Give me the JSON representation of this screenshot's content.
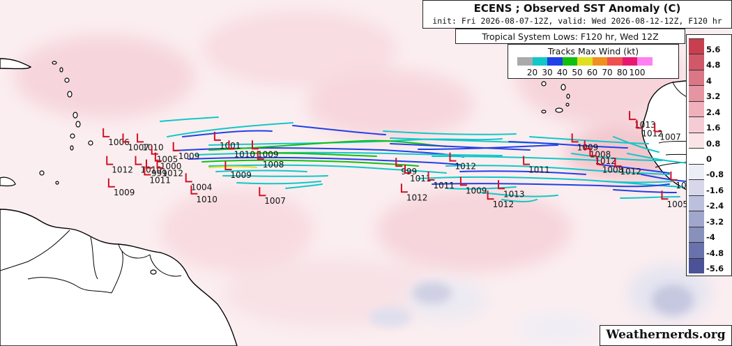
{
  "title": "ECENS ; Observed SST Anomaly (C)",
  "subtitle": "init: Fri 2026-08-07-12Z, valid: Wed 2026-08-12-12Z, F120 hr",
  "tracks_header": "Tropical System Lows: F120 hr, Wed 12Z",
  "wind_legend": {
    "title": "Tracks Max Wind (kt)",
    "colors": [
      "#aaaaaa",
      "#10c8c8",
      "#2040e8",
      "#10c010",
      "#e0e020",
      "#f09020",
      "#f05050",
      "#e81870",
      "#ff80f0"
    ],
    "ticks": [
      "20",
      "30",
      "40",
      "50",
      "60",
      "70",
      "80",
      "100"
    ]
  },
  "colorbar": {
    "labels": [
      "5.6",
      "4.8",
      "4",
      "3.2",
      "2.4",
      "1.6",
      "0.8",
      "0",
      "-0.8",
      "-1.6",
      "-2.4",
      "-3.2",
      "-4",
      "-4.8",
      "-5.6"
    ],
    "colors": [
      "#c84050",
      "#d05868",
      "#da7686",
      "#e694a2",
      "#efb0bc",
      "#f6ccd4",
      "#fbe4e8",
      "#ffffff",
      "#eceef6",
      "#d6d8ea",
      "#bcc0dc",
      "#a0a6cc",
      "#8890bc",
      "#6a72ac",
      "#4c5296"
    ]
  },
  "credit": "Weathernerds.org",
  "chart_data": {
    "type": "map",
    "field": "Observed SST Anomaly (C)",
    "lows": [
      {
        "pressure": "1006",
        "lon": -60.5,
        "lat": 16.2
      },
      {
        "pressure": "1007",
        "lon": -59.4,
        "lat": 15.9
      },
      {
        "pressure": "1010",
        "lon": -58.6,
        "lat": 15.9
      },
      {
        "pressure": "1012",
        "lon": -60.3,
        "lat": 14.6
      },
      {
        "pressure": "1010",
        "lon": -58.7,
        "lat": 14.6
      },
      {
        "pressure": "1005",
        "lon": -57.8,
        "lat": 15.2
      },
      {
        "pressure": "1009",
        "lon": -56.6,
        "lat": 15.4
      },
      {
        "pressure": "1000",
        "lon": -57.6,
        "lat": 14.8
      },
      {
        "pressure": "999",
        "lon": -58.1,
        "lat": 14.4
      },
      {
        "pressure": "1012",
        "lon": -57.5,
        "lat": 14.4
      },
      {
        "pressure": "1011",
        "lon": -58.2,
        "lat": 14.0
      },
      {
        "pressure": "1004",
        "lon": -55.9,
        "lat": 13.6
      },
      {
        "pressure": "1009",
        "lon": -60.2,
        "lat": 13.3
      },
      {
        "pressure": "1010",
        "lon": -55.6,
        "lat": 12.9
      },
      {
        "pressure": "1001",
        "lon": -54.3,
        "lat": 16.0
      },
      {
        "pressure": "1010",
        "lon": -53.5,
        "lat": 15.5
      },
      {
        "pressure": "1009",
        "lon": -52.2,
        "lat": 15.5
      },
      {
        "pressure": "1008",
        "lon": -51.9,
        "lat": 14.9
      },
      {
        "pressure": "1009",
        "lon": -53.7,
        "lat": 14.3
      },
      {
        "pressure": "1007",
        "lon": -51.8,
        "lat": 12.8
      },
      {
        "pressure": "999",
        "lon": -44.2,
        "lat": 14.5
      },
      {
        "pressure": "1011",
        "lon": -43.7,
        "lat": 14.1
      },
      {
        "pressure": "1012",
        "lon": -43.9,
        "lat": 13.0
      },
      {
        "pressure": "1011",
        "lon": -42.4,
        "lat": 13.7
      },
      {
        "pressure": "1012",
        "lon": -41.2,
        "lat": 14.8
      },
      {
        "pressure": "1009",
        "lon": -40.6,
        "lat": 13.4
      },
      {
        "pressure": "1013",
        "lon": -38.5,
        "lat": 13.2
      },
      {
        "pressure": "1012",
        "lon": -39.1,
        "lat": 12.6
      },
      {
        "pressure": "1011",
        "lon": -37.1,
        "lat": 14.6
      },
      {
        "pressure": "1009",
        "lon": -34.4,
        "lat": 15.9
      },
      {
        "pressure": "1008",
        "lon": -33.7,
        "lat": 15.5
      },
      {
        "pressure": "1012",
        "lon": -33.4,
        "lat": 15.1
      },
      {
        "pressure": "1008",
        "lon": -33.0,
        "lat": 14.6
      },
      {
        "pressure": "1012",
        "lon": -32.0,
        "lat": 14.5
      },
      {
        "pressure": "1013",
        "lon": -31.2,
        "lat": 17.2
      },
      {
        "pressure": "1012",
        "lon": -30.8,
        "lat": 16.7
      },
      {
        "pressure": "1007",
        "lon": -29.8,
        "lat": 16.5
      },
      {
        "pressure": "1012",
        "lon": -28.9,
        "lat": 13.7
      },
      {
        "pressure": "1005",
        "lon": -29.4,
        "lat": 12.6
      }
    ]
  }
}
